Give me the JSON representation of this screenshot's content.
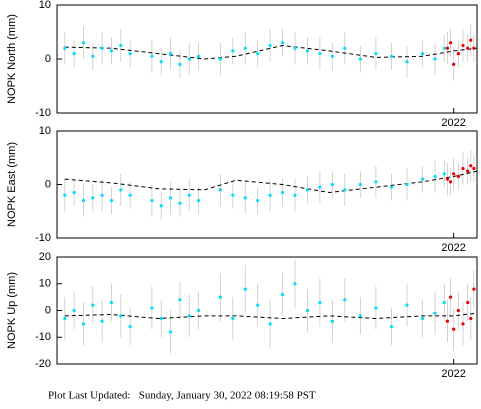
{
  "chart_data": [
    {
      "type": "scatter",
      "y_label": "NOPK North (mm)",
      "xlim": [
        2019.45,
        2022.15
      ],
      "xticks": [
        2022
      ],
      "ylim": [
        -10,
        10
      ],
      "yticks": [
        -10,
        0,
        10
      ],
      "series": [
        {
          "color": "#00ddff",
          "x": [
            2019.5,
            2019.56,
            2019.62,
            2019.68,
            2019.74,
            2019.8,
            2019.86,
            2019.92,
            2020.06,
            2020.12,
            2020.18,
            2020.24,
            2020.3,
            2020.36,
            2020.5,
            2020.58,
            2020.66,
            2020.74,
            2020.82,
            2020.9,
            2020.98,
            2021.06,
            2021.14,
            2021.22,
            2021.3,
            2021.4,
            2021.5,
            2021.6,
            2021.7,
            2021.8,
            2021.88,
            2021.94
          ],
          "values": [
            2,
            1,
            3,
            0.5,
            2,
            1.5,
            2.5,
            1,
            0.5,
            -0.5,
            1,
            -1,
            0,
            0.5,
            0,
            1.5,
            2,
            1,
            2.5,
            3,
            2,
            1.5,
            1,
            0.5,
            2,
            0,
            1,
            0.5,
            -0.5,
            1,
            0,
            2
          ],
          "errors": [
            3,
            2.5,
            3,
            2.5,
            3,
            2.5,
            3,
            2.5,
            3,
            2.5,
            3,
            2.5,
            3,
            2.5,
            3,
            2.5,
            3,
            2.5,
            3,
            2.5,
            3,
            2.5,
            3,
            2.5,
            3,
            2.5,
            3,
            2.5,
            3,
            2.5,
            3,
            2.5
          ]
        },
        {
          "color": "#ee0000",
          "x": [
            2021.96,
            2021.98,
            2022.0,
            2022.03,
            2022.06,
            2022.09,
            2022.11,
            2022.13
          ],
          "values": [
            2,
            3,
            -1,
            1,
            2.5,
            2,
            3.5,
            2
          ],
          "errors": [
            3,
            2.5,
            3,
            2.5,
            3,
            2.5,
            3,
            2.5
          ]
        }
      ],
      "model": {
        "color": "#000000",
        "x": [
          2019.5,
          2019.8,
          2020.1,
          2020.4,
          2020.6,
          2020.9,
          2021.2,
          2021.5,
          2021.8,
          2022.0,
          2022.15
        ],
        "values": [
          2.2,
          2,
          1,
          0,
          0.5,
          2.5,
          1.5,
          0.3,
          0.5,
          1.5,
          2
        ]
      }
    },
    {
      "type": "scatter",
      "y_label": "NOPK East (mm)",
      "xlim": [
        2019.45,
        2022.15
      ],
      "xticks": [
        2022
      ],
      "ylim": [
        -10,
        10
      ],
      "yticks": [
        -10,
        0,
        10
      ],
      "series": [
        {
          "color": "#00ddff",
          "x": [
            2019.5,
            2019.56,
            2019.62,
            2019.68,
            2019.74,
            2019.8,
            2019.86,
            2019.92,
            2020.06,
            2020.12,
            2020.18,
            2020.24,
            2020.3,
            2020.36,
            2020.5,
            2020.58,
            2020.66,
            2020.74,
            2020.82,
            2020.9,
            2020.98,
            2021.06,
            2021.14,
            2021.22,
            2021.3,
            2021.4,
            2021.5,
            2021.6,
            2021.7,
            2021.8,
            2021.88,
            2021.94
          ],
          "values": [
            -2,
            -1.5,
            -3,
            -2.5,
            -2,
            -3,
            -1,
            -2,
            -3,
            -4,
            -2.5,
            -3.5,
            -2,
            -3,
            -1,
            -2,
            -2.5,
            -3,
            -2,
            -1.5,
            -2,
            -1,
            -0.5,
            0,
            -1,
            0,
            0.5,
            -0.5,
            0,
            1,
            1.5,
            2
          ],
          "errors": [
            3,
            2.5,
            3,
            2.5,
            3,
            2.5,
            3,
            2.5,
            3,
            2.5,
            3,
            2.5,
            3,
            2.5,
            3,
            2.5,
            3,
            2.5,
            3,
            2.5,
            3,
            2.5,
            3,
            2.5,
            3,
            2.5,
            3,
            2.5,
            3,
            2.5,
            3,
            2.5
          ]
        },
        {
          "color": "#ee0000",
          "x": [
            2021.96,
            2021.98,
            2022.0,
            2022.03,
            2022.06,
            2022.09,
            2022.11,
            2022.13
          ],
          "values": [
            1,
            0.5,
            2,
            1.5,
            3,
            2.5,
            3.5,
            3
          ],
          "errors": [
            3,
            2.5,
            3,
            2.5,
            3,
            2.5,
            3,
            2.5
          ]
        }
      ],
      "model": {
        "color": "#000000",
        "x": [
          2019.5,
          2019.8,
          2020.1,
          2020.4,
          2020.6,
          2020.9,
          2021.2,
          2021.5,
          2021.8,
          2022.0,
          2022.15
        ],
        "values": [
          1,
          0.3,
          -0.8,
          -1,
          0.8,
          0,
          -1.5,
          -0.5,
          0.5,
          1.5,
          2.5
        ]
      }
    },
    {
      "type": "scatter",
      "y_label": "NOPK Up (mm)",
      "xlim": [
        2019.45,
        2022.15
      ],
      "xticks": [
        2022
      ],
      "ylim": [
        -20,
        20
      ],
      "yticks": [
        -20,
        -10,
        0,
        10,
        20
      ],
      "series": [
        {
          "color": "#00ddff",
          "x": [
            2019.5,
            2019.56,
            2019.62,
            2019.68,
            2019.74,
            2019.8,
            2019.86,
            2019.92,
            2020.06,
            2020.12,
            2020.18,
            2020.24,
            2020.3,
            2020.36,
            2020.5,
            2020.58,
            2020.66,
            2020.74,
            2020.82,
            2020.9,
            2020.98,
            2021.06,
            2021.14,
            2021.22,
            2021.3,
            2021.4,
            2021.5,
            2021.6,
            2021.7,
            2021.8,
            2021.88,
            2021.94
          ],
          "values": [
            -3,
            0,
            -5,
            2,
            -4,
            3,
            -2,
            -6,
            1,
            -3,
            -8,
            4,
            -2,
            0,
            5,
            -3,
            8,
            2,
            -5,
            6,
            10,
            0,
            3,
            -4,
            4,
            -2,
            1,
            -6,
            2,
            -3,
            -1,
            3
          ],
          "errors": [
            8,
            7,
            8,
            7,
            8,
            7,
            8,
            7,
            8,
            7,
            8,
            7,
            8,
            7,
            9,
            8,
            9,
            8,
            9,
            8,
            9,
            8,
            9,
            8,
            8,
            7,
            8,
            7,
            8,
            7,
            8,
            7
          ]
        },
        {
          "color": "#ee0000",
          "x": [
            2021.96,
            2021.98,
            2022.0,
            2022.03,
            2022.06,
            2022.09,
            2022.11,
            2022.13
          ],
          "values": [
            -4,
            5,
            -7,
            0,
            -5,
            3,
            -3,
            8
          ],
          "errors": [
            8,
            7,
            8,
            7,
            8,
            7,
            8,
            7
          ]
        }
      ],
      "model": {
        "color": "#000000",
        "x": [
          2019.5,
          2019.8,
          2020.1,
          2020.4,
          2020.6,
          2020.9,
          2021.2,
          2021.5,
          2021.8,
          2022.0,
          2022.15
        ],
        "values": [
          -2,
          -1.5,
          -3,
          -2,
          -2,
          -3,
          -2,
          -3,
          -2,
          -2,
          -1
        ]
      }
    }
  ],
  "footer": "Plot Last Updated:   Sunday, January 30, 2022 08:19:58 PST"
}
